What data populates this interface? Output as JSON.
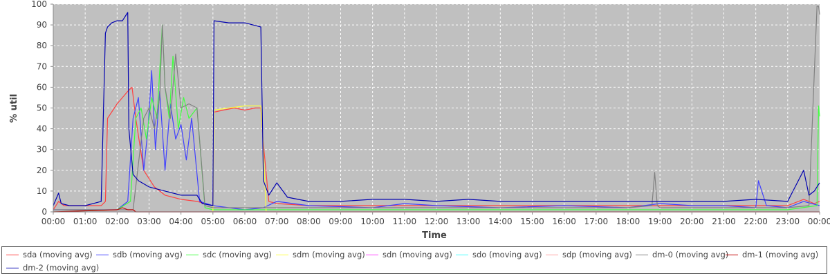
{
  "chart_data": {
    "type": "line",
    "xlabel": "Time",
    "ylabel": "% util",
    "ylim": [
      0,
      100
    ],
    "xlim": [
      "00:00",
      "24:00"
    ],
    "yticks": [
      0,
      10,
      20,
      30,
      40,
      50,
      60,
      70,
      80,
      90,
      100
    ],
    "xticks": [
      "00:00",
      "01:00",
      "02:00",
      "03:00",
      "04:00",
      "05:00",
      "06:00",
      "07:00",
      "08:00",
      "09:00",
      "10:00",
      "11:00",
      "12:00",
      "13:00",
      "14:00",
      "15:00",
      "16:00",
      "17:00",
      "18:00",
      "19:00",
      "20:00",
      "21:00",
      "22:00",
      "23:00",
      "00:00"
    ],
    "grid": true,
    "background": "#c0c0c0",
    "legend_position": "bottom",
    "series": [
      {
        "name": "sda (moving avg)",
        "color": "#ff4040",
        "x": [
          "00:00",
          "00:10",
          "00:20",
          "01:00",
          "01:30",
          "01:38",
          "01:42",
          "02:00",
          "02:20",
          "02:28",
          "02:35",
          "02:50",
          "03:10",
          "03:30",
          "04:00",
          "04:30",
          "05:00",
          "05:02",
          "05:20",
          "05:40",
          "06:00",
          "06:20",
          "06:30",
          "06:34",
          "06:45",
          "07:00",
          "08:00",
          "09:00",
          "10:00",
          "11:00",
          "12:00",
          "13:00",
          "14:00",
          "15:00",
          "16:00",
          "17:00",
          "18:00",
          "19:00",
          "20:00",
          "21:00",
          "22:00",
          "23:00",
          "23:30",
          "23:50",
          "24:00"
        ],
        "y": [
          1,
          5,
          3,
          3,
          3,
          5,
          45,
          52,
          58,
          60,
          45,
          20,
          12,
          8,
          6,
          5,
          3,
          48,
          49,
          50,
          49,
          50,
          50,
          35,
          5,
          4,
          3,
          3,
          3,
          3,
          3,
          3,
          3,
          3,
          3,
          3,
          3,
          3,
          3,
          3,
          3,
          3,
          6,
          4,
          5
        ]
      },
      {
        "name": "sdb (moving avg)",
        "color": "#4040ff",
        "x": [
          "00:00",
          "02:00",
          "02:20",
          "02:30",
          "02:40",
          "02:50",
          "02:58",
          "03:05",
          "03:12",
          "03:20",
          "03:30",
          "03:40",
          "03:50",
          "04:00",
          "04:10",
          "04:20",
          "04:35",
          "05:00",
          "06:00",
          "06:35",
          "07:00",
          "08:00",
          "10:00",
          "11:00",
          "12:00",
          "14:00",
          "16:00",
          "18:00",
          "19:00",
          "20:00",
          "21:00",
          "22:00",
          "22:05",
          "22:20",
          "23:00",
          "23:30",
          "24:00"
        ],
        "y": [
          1,
          1,
          5,
          45,
          55,
          20,
          40,
          68,
          30,
          58,
          20,
          52,
          35,
          42,
          25,
          45,
          5,
          3,
          1,
          2,
          5,
          3,
          2,
          4,
          3,
          2,
          3,
          2,
          4,
          3,
          3,
          2,
          15,
          3,
          2,
          5,
          3
        ]
      },
      {
        "name": "sdc (moving avg)",
        "color": "#40ff40",
        "x": [
          "00:00",
          "02:00",
          "02:25",
          "02:35",
          "02:45",
          "02:55",
          "03:05",
          "03:15",
          "03:25",
          "03:30",
          "03:38",
          "03:45",
          "03:55",
          "04:05",
          "04:15",
          "04:30",
          "04:45",
          "05:00",
          "10:00",
          "18:00",
          "19:00",
          "23:00",
          "23:55",
          "23:58",
          "24:00"
        ],
        "y": [
          0,
          1,
          5,
          45,
          50,
          35,
          55,
          45,
          90,
          60,
          45,
          75,
          40,
          55,
          45,
          50,
          2,
          1,
          1,
          1,
          1,
          1,
          3,
          51,
          46
        ]
      },
      {
        "name": "sdm (moving avg)",
        "color": "#ffff40",
        "x": [
          "00:00",
          "05:00",
          "05:02",
          "05:30",
          "06:00",
          "06:30",
          "06:34",
          "06:40",
          "24:00"
        ],
        "y": [
          0,
          0,
          49,
          50,
          51,
          51,
          35,
          0,
          0
        ]
      },
      {
        "name": "sdn (moving avg)",
        "color": "#ff40ff",
        "x": [
          "00:00",
          "24:00"
        ],
        "y": [
          0,
          0
        ]
      },
      {
        "name": "sdo (moving avg)",
        "color": "#40ffff",
        "x": [
          "00:00",
          "24:00"
        ],
        "y": [
          0,
          0
        ]
      },
      {
        "name": "sdp (moving avg)",
        "color": "#ffa0a0",
        "x": [
          "00:00",
          "24:00"
        ],
        "y": [
          0,
          0
        ]
      },
      {
        "name": "dm-0 (moving avg)",
        "color": "#808080",
        "x": [
          "00:00",
          "02:30",
          "02:50",
          "03:00",
          "03:10",
          "03:20",
          "03:25",
          "03:30",
          "03:40",
          "03:50",
          "04:00",
          "04:15",
          "04:30",
          "04:45",
          "05:00",
          "18:00",
          "18:45",
          "18:50",
          "18:55",
          "19:00",
          "23:00",
          "23:40",
          "23:55",
          "23:58",
          "24:00"
        ],
        "y": [
          1,
          1,
          45,
          50,
          40,
          55,
          90,
          60,
          45,
          76,
          50,
          52,
          50,
          3,
          2,
          2,
          3,
          19,
          3,
          2,
          2,
          3,
          99,
          99,
          95
        ]
      },
      {
        "name": "dm-1 (moving avg)",
        "color": "#c00000",
        "x": [
          "00:00",
          "02:00",
          "02:10",
          "02:20",
          "02:30",
          "02:35",
          "02:40",
          "24:00"
        ],
        "y": [
          0,
          1,
          2,
          1,
          1,
          0,
          0,
          0
        ]
      },
      {
        "name": "dm-2 (moving avg)",
        "color": "#0000b0",
        "x": [
          "00:00",
          "00:10",
          "00:15",
          "00:30",
          "01:00",
          "01:30",
          "01:38",
          "01:42",
          "01:50",
          "02:00",
          "02:10",
          "02:20",
          "02:22",
          "02:30",
          "02:40",
          "03:00",
          "03:30",
          "04:00",
          "04:30",
          "04:40",
          "05:00",
          "05:02",
          "05:30",
          "06:00",
          "06:30",
          "06:35",
          "06:45",
          "07:00",
          "07:20",
          "08:00",
          "09:00",
          "10:00",
          "11:00",
          "12:00",
          "13:00",
          "14:00",
          "15:00",
          "16:00",
          "17:00",
          "18:00",
          "19:00",
          "20:00",
          "21:00",
          "22:00",
          "23:00",
          "23:30",
          "23:40",
          "23:50",
          "24:00"
        ],
        "y": [
          3,
          9,
          4,
          3,
          3,
          5,
          86,
          89,
          91,
          92,
          92,
          96,
          40,
          18,
          15,
          12,
          10,
          8,
          8,
          4,
          3,
          92,
          91,
          91,
          89,
          15,
          8,
          14,
          7,
          5,
          5,
          6,
          6,
          5,
          6,
          5,
          5,
          5,
          5,
          5,
          5,
          5,
          5,
          6,
          5,
          20,
          8,
          10,
          14
        ]
      }
    ]
  }
}
